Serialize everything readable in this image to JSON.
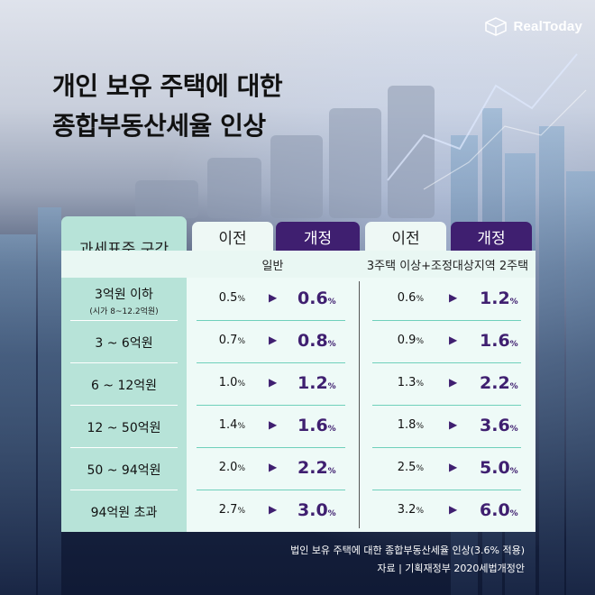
{
  "brand": {
    "name": "RealToday"
  },
  "title_lines": [
    "개인 보유 주택에 대한",
    "종합부동산세율 인상"
  ],
  "table": {
    "corner_label": "과세표준 구간",
    "groups": [
      {
        "label": "일반",
        "before_tab": "이전",
        "after_tab": "개정"
      },
      {
        "label": "3주택 이상+조정대상지역 2주택",
        "before_tab": "이전",
        "after_tab": "개정"
      }
    ],
    "rows": [
      {
        "label": "3억원 이하",
        "sub": "(시가 8~12.2억원)",
        "g1_before": "0.5",
        "g1_after": "0.6",
        "g2_before": "0.6",
        "g2_after": "1.2"
      },
      {
        "label": "3 ~ 6억원",
        "sub": "",
        "g1_before": "0.7",
        "g1_after": "0.8",
        "g2_before": "0.9",
        "g2_after": "1.6"
      },
      {
        "label": "6 ~ 12억원",
        "sub": "",
        "g1_before": "1.0",
        "g1_after": "1.2",
        "g2_before": "1.3",
        "g2_after": "2.2"
      },
      {
        "label": "12 ~ 50억원",
        "sub": "",
        "g1_before": "1.4",
        "g1_after": "1.6",
        "g2_before": "1.8",
        "g2_after": "3.6"
      },
      {
        "label": "50 ~ 94억원",
        "sub": "",
        "g1_before": "2.0",
        "g1_after": "2.2",
        "g2_before": "2.5",
        "g2_after": "5.0"
      },
      {
        "label": "94억원 초과",
        "sub": "",
        "g1_before": "2.7",
        "g1_after": "3.0",
        "g2_before": "3.2",
        "g2_after": "6.0"
      }
    ],
    "unit": "%",
    "arrow": "▶"
  },
  "footnotes": [
    "법인 보유 주택에 대한 종합부동산세율 인상(3.6% 적용)",
    "자료 | 기획재정부 2020세법개정안"
  ],
  "colors": {
    "accent": "#3f1f70",
    "row_label_bg": "#b7e3d8",
    "cell_bg": "#eefaf7"
  }
}
